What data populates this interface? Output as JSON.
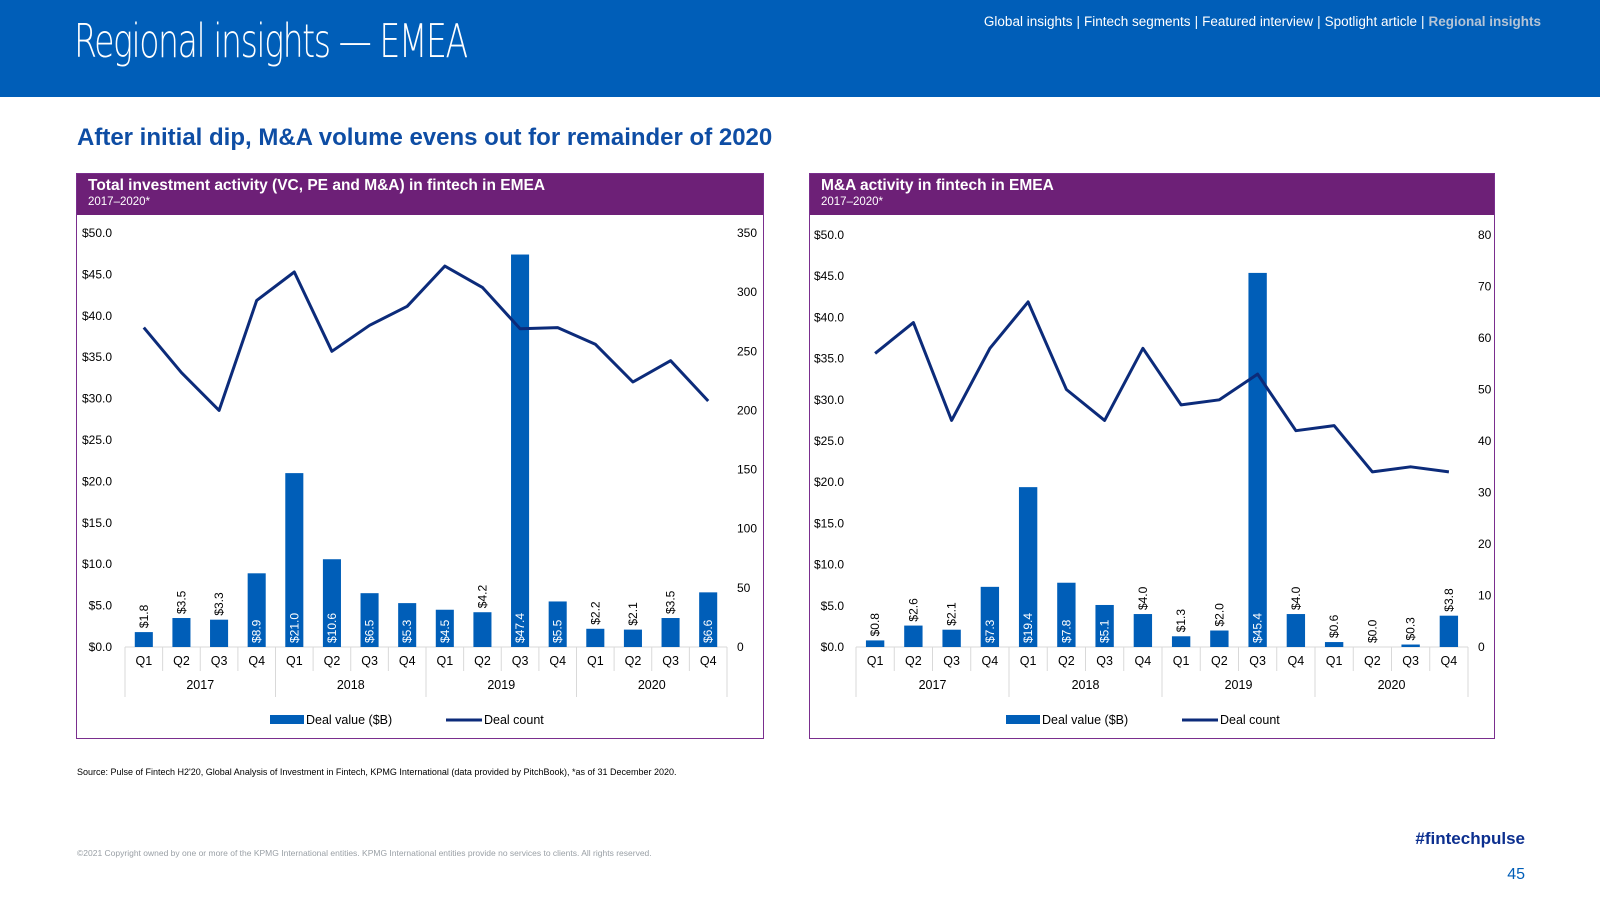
{
  "header": {
    "title": "Regional insights — EMEA",
    "nav": [
      {
        "label": "Global insights",
        "active": false
      },
      {
        "label": "Fintech segments",
        "active": false
      },
      {
        "label": "Featured interview",
        "active": false
      },
      {
        "label": "Spotlight article",
        "active": false
      },
      {
        "label": "Regional insights",
        "active": true
      }
    ],
    "nav_separator": "|"
  },
  "subtitle": "After initial dip, M&A volume evens out for remainder of 2020",
  "colors": {
    "brand_blue": "#005EB8",
    "panel_purple": "#6D2077",
    "bar_blue": "#005EB8",
    "line_navy": "#0C2B7A"
  },
  "chart_data": [
    {
      "type": "bar",
      "title": "Total investment activity (VC, PE and M&A) in fintech in EMEA",
      "subtitle": "2017–2020*",
      "categories": [
        "Q1",
        "Q2",
        "Q3",
        "Q4",
        "Q1",
        "Q2",
        "Q3",
        "Q4",
        "Q1",
        "Q2",
        "Q3",
        "Q4",
        "Q1",
        "Q2",
        "Q3",
        "Q4"
      ],
      "years": [
        "2017",
        "2018",
        "2019",
        "2020"
      ],
      "series": [
        {
          "name": "Deal value ($B)",
          "type": "bar",
          "axis": "left",
          "values": [
            1.8,
            3.5,
            3.3,
            8.9,
            21.0,
            10.6,
            6.5,
            5.3,
            4.5,
            4.2,
            47.4,
            5.5,
            2.2,
            2.1,
            3.5,
            6.6
          ],
          "labels": [
            "$1.8",
            "$3.5",
            "$3.3",
            "$8.9",
            "$21.0",
            "$10.6",
            "$6.5",
            "$5.3",
            "$4.5",
            "$4.2",
            "$47.4",
            "$5.5",
            "$2.2",
            "$2.1",
            "$3.5",
            "$6.6"
          ]
        },
        {
          "name": "Deal count",
          "type": "line",
          "axis": "right",
          "values": [
            270,
            232,
            200,
            293,
            317,
            250,
            272,
            288,
            322,
            304,
            269,
            270,
            256,
            224,
            242,
            208
          ]
        }
      ],
      "left_axis": {
        "ylim": [
          0,
          50
        ],
        "ticks": [
          "$0.0",
          "$5.0",
          "$10.0",
          "$15.0",
          "$20.0",
          "$25.0",
          "$30.0",
          "$35.0",
          "$40.0",
          "$45.0",
          "$50.0"
        ]
      },
      "right_axis": {
        "ylim": [
          0,
          350
        ],
        "ticks": [
          "0",
          "50",
          "100",
          "150",
          "200",
          "250",
          "300",
          "350"
        ]
      },
      "legend": {
        "position": "bottom",
        "items": [
          "Deal value ($B)",
          "Deal count"
        ]
      },
      "grid": false
    },
    {
      "type": "bar",
      "title": "M&A activity in fintech in EMEA",
      "subtitle": "2017–2020*",
      "categories": [
        "Q1",
        "Q2",
        "Q3",
        "Q4",
        "Q1",
        "Q2",
        "Q3",
        "Q4",
        "Q1",
        "Q2",
        "Q3",
        "Q4",
        "Q1",
        "Q2",
        "Q3",
        "Q4"
      ],
      "years": [
        "2017",
        "2018",
        "2019",
        "2020"
      ],
      "series": [
        {
          "name": "Deal value ($B)",
          "type": "bar",
          "axis": "left",
          "values": [
            0.8,
            2.6,
            2.1,
            7.3,
            19.4,
            7.8,
            5.1,
            4.0,
            1.3,
            2.0,
            45.4,
            4.0,
            0.6,
            0.0,
            0.3,
            3.8
          ],
          "labels": [
            "$0.8",
            "$2.6",
            "$2.1",
            "$7.3",
            "$19.4",
            "$7.8",
            "$5.1",
            "$4.0",
            "$1.3",
            "$2.0",
            "$45.4",
            "$4.0",
            "$0.6",
            "$0.0",
            "$0.3",
            "$3.8"
          ]
        },
        {
          "name": "Deal count",
          "type": "line",
          "axis": "right",
          "values": [
            57,
            63,
            44,
            58,
            67,
            50,
            44,
            58,
            47,
            48,
            53,
            42,
            43,
            34,
            35,
            34
          ]
        }
      ],
      "left_axis": {
        "ylim": [
          0,
          50
        ],
        "ticks": [
          "$0.0",
          "$5.0",
          "$10.0",
          "$15.0",
          "$20.0",
          "$25.0",
          "$30.0",
          "$35.0",
          "$40.0",
          "$45.0",
          "$50.0"
        ]
      },
      "right_axis": {
        "ylim": [
          0,
          80
        ],
        "ticks": [
          "0",
          "10",
          "20",
          "30",
          "40",
          "50",
          "60",
          "70",
          "80"
        ]
      },
      "legend": {
        "position": "bottom",
        "items": [
          "Deal value ($B)",
          "Deal count"
        ]
      },
      "grid": false
    }
  ],
  "source": "Source: Pulse of Fintech H2'20, Global Analysis of Investment in Fintech, KPMG International (data provided by PitchBook), *as of 31 December 2020.",
  "copyright": "©2021 Copyright owned by one or more of the KPMG International entities. KPMG International entities provide no services to clients. All rights reserved.",
  "hashtag": "#fintechpulse",
  "page_number": "45"
}
